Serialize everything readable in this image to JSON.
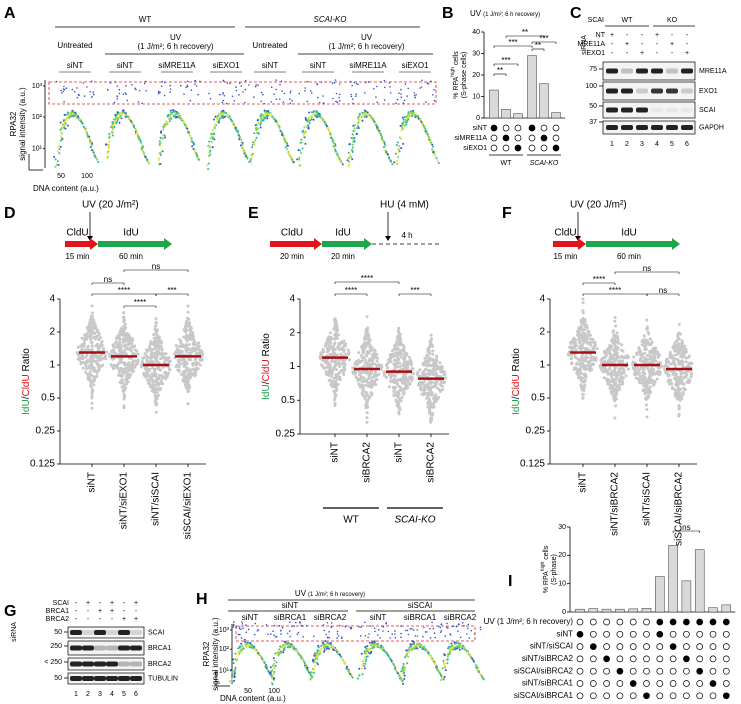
{
  "A": {
    "letter": "A",
    "groups": [
      "WT",
      "SCAI-KO"
    ],
    "untreated": "Untreated",
    "uv": "UV",
    "uv_detail": "(1 J/m²; 6 h recovery)",
    "lanes": [
      "siNT",
      "siNT",
      "siMRE11A",
      "siEXO1",
      "siNT",
      "siNT",
      "siMRE11A",
      "siEXO1"
    ],
    "ylabel": [
      "RPA32",
      "signal intensity (a.u.)"
    ],
    "xlabel": "DNA content (a.u.)",
    "yticks": [
      "10³",
      "10²",
      "10¹"
    ],
    "xticks": [
      "50",
      "100"
    ]
  },
  "B": {
    "letter": "B",
    "title": "UV",
    "title_detail": "(1 J/m²; 6 h recovery)",
    "ylabel_main": "% RPA",
    "ylabel_sup": "high",
    "ylabel_end": " cells",
    "ylabel_line2": "(S-phase cells)",
    "ylim": [
      0,
      40
    ],
    "yticks": [
      0,
      10,
      20,
      30,
      40
    ],
    "values": [
      13,
      4,
      2,
      29,
      16,
      2.5
    ],
    "color": "#d9d9d9",
    "sig": [
      "**",
      "***",
      "***",
      "**",
      "**",
      "***"
    ],
    "rows": [
      "siNT",
      "siMRE11A",
      "siEXO1"
    ],
    "matrix": [
      [
        1,
        0,
        0,
        1,
        0,
        0
      ],
      [
        0,
        1,
        0,
        0,
        1,
        0
      ],
      [
        0,
        0,
        1,
        0,
        0,
        1
      ]
    ],
    "groups": [
      "WT",
      "SCAI-KO"
    ]
  },
  "C": {
    "letter": "C",
    "siRNA": "siRNA",
    "header": "SCAI",
    "groups": [
      "WT",
      "KO"
    ],
    "rows": [
      "NT",
      "MRE11A",
      "EXO1"
    ],
    "signs": [
      [
        "+",
        "-",
        "-",
        "+",
        "-",
        "-"
      ],
      [
        "-",
        "+",
        "-",
        "-",
        "+",
        "-"
      ],
      [
        "-",
        "-",
        "+",
        "-",
        "-",
        "+"
      ]
    ],
    "mw": [
      "75",
      "100",
      "50",
      "37"
    ],
    "bands": [
      "MRE11A",
      "EXO1",
      "SCAI",
      "GAPDH"
    ],
    "lanes": [
      "1",
      "2",
      "3",
      "4",
      "5",
      "6"
    ]
  },
  "D": {
    "letter": "D",
    "treatment": "UV (20 J/m²)",
    "labels": [
      "CldU",
      "IdU"
    ],
    "label_colors": [
      "#e3141b",
      "#1fa64a"
    ],
    "times": [
      "15 min",
      "60 min"
    ],
    "ylabel": [
      "IdU",
      "/",
      "CldU",
      " Ratio"
    ],
    "ylabel_colors": [
      "#1fa64a",
      "#000000",
      "#e3141b",
      "#000000"
    ],
    "log": true,
    "ylim": [
      0.125,
      4
    ],
    "yticks": [
      0.125,
      0.25,
      0.5,
      1,
      2,
      4
    ],
    "categories": [
      "siNT",
      "siNT/siEXO1",
      "siNT/siSCAI",
      "siSCAI/siEXO1"
    ],
    "medians": [
      1.3,
      1.2,
      1.0,
      1.2
    ],
    "median_color": "#a50f15",
    "sig": [
      "ns",
      "ns",
      "****",
      "***",
      "****"
    ]
  },
  "E": {
    "letter": "E",
    "treatment": "HU (4 mM)",
    "labels": [
      "CldU",
      "IdU"
    ],
    "label_colors": [
      "#e3141b",
      "#1fa64a"
    ],
    "times": [
      "20 min",
      "20 min",
      "4 h"
    ],
    "ylabel": [
      "IdU",
      "/",
      "CldU",
      " Ratio"
    ],
    "ylabel_colors": [
      "#1fa64a",
      "#000000",
      "#e3141b",
      "#000000"
    ],
    "log": true,
    "ylim": [
      0.25,
      4
    ],
    "yticks": [
      0.25,
      0.5,
      1,
      2,
      4
    ],
    "categories": [
      "siNT",
      "siBRCA2",
      "siNT",
      "siBRCA2"
    ],
    "groups": [
      "WT",
      "SCAI-KO"
    ],
    "medians": [
      1.2,
      0.95,
      0.9,
      0.78
    ],
    "median_color": "#a50f15",
    "sig": [
      "****",
      "****",
      "***"
    ]
  },
  "F": {
    "letter": "F",
    "treatment": "UV (20 J/m²)",
    "labels": [
      "CldU",
      "IdU"
    ],
    "label_colors": [
      "#e3141b",
      "#1fa64a"
    ],
    "times": [
      "15 min",
      "60 min"
    ],
    "ylabel": [
      "IdU",
      "/",
      "CldU",
      " Ratio"
    ],
    "ylabel_colors": [
      "#1fa64a",
      "#000000",
      "#e3141b",
      "#000000"
    ],
    "log": true,
    "ylim": [
      0.125,
      4
    ],
    "yticks": [
      0.125,
      0.25,
      0.5,
      1,
      2,
      4
    ],
    "categories": [
      "siNT",
      "siNT/siBRCA2",
      "siNT/siSCAI",
      "siSCAI/siBRCA2"
    ],
    "medians": [
      1.3,
      1.0,
      1.0,
      0.92
    ],
    "median_color": "#a50f15",
    "sig": [
      "****",
      "****",
      "ns",
      "ns"
    ]
  },
  "G": {
    "letter": "G",
    "siRNA": "siRNA",
    "rows": [
      "SCAI",
      "BRCA1",
      "BRCA2"
    ],
    "signs": [
      [
        "-",
        "+",
        "-",
        "+",
        "-",
        "+"
      ],
      [
        "-",
        "-",
        "+",
        "+",
        "-",
        "-"
      ],
      [
        "-",
        "-",
        "-",
        "-",
        "+",
        "+"
      ]
    ],
    "mw": [
      "50",
      "250",
      "< 250",
      "50"
    ],
    "bands": [
      "SCAI",
      "BRCA1",
      "BRCA2",
      "TUBULIN"
    ],
    "lanes": [
      "1",
      "2",
      "3",
      "4",
      "5",
      "6"
    ]
  },
  "H": {
    "letter": "H",
    "title": "UV",
    "title_detail": "(1 J/m²; 6 h recovery)",
    "groups": [
      "siNT",
      "siSCAI"
    ],
    "lanes": [
      "siNT",
      "siBRCA1",
      "siBRCA2",
      "siNT",
      "siBRCA1",
      "siBRCA2"
    ],
    "ylabel": [
      "RPA32",
      "signal intensity (a.u.)"
    ],
    "xlabel": "DNA content (a.u.)",
    "yticks": [
      "10³",
      "10²",
      "10¹"
    ],
    "xticks": [
      "50",
      "100"
    ]
  },
  "I": {
    "letter": "I",
    "ylabel_main": "% RPA",
    "ylabel_sup": "high",
    "ylabel_end": " cells",
    "ylabel_line2": "(S-phase)",
    "ylim": [
      0,
      30
    ],
    "yticks": [
      0,
      10,
      20,
      30
    ],
    "values": [
      1,
      1.2,
      1,
      1,
      1.1,
      1.3,
      12.5,
      23.5,
      11,
      22,
      1.5,
      2.5
    ],
    "color": "#d9d9d9",
    "sig": [
      "ns"
    ],
    "rows": [
      "UV (1 J/m²; 6 h recovery)",
      "siNT",
      "siNT/siSCAI",
      "siNT/siBRCA2",
      "siSCAI/siBRCA2",
      "siNT/siBRCA1",
      "siSCAI/siBRCA1"
    ],
    "matrix": [
      [
        0,
        0,
        0,
        0,
        0,
        0,
        1,
        1,
        1,
        1,
        1,
        1
      ],
      [
        1,
        0,
        0,
        0,
        0,
        0,
        1,
        0,
        0,
        0,
        0,
        0
      ],
      [
        0,
        1,
        0,
        0,
        0,
        0,
        0,
        1,
        0,
        0,
        0,
        0
      ],
      [
        0,
        0,
        1,
        0,
        0,
        0,
        0,
        0,
        1,
        0,
        0,
        0
      ],
      [
        0,
        0,
        0,
        1,
        0,
        0,
        0,
        0,
        0,
        1,
        0,
        0
      ],
      [
        0,
        0,
        0,
        0,
        1,
        0,
        0,
        0,
        0,
        0,
        1,
        0
      ],
      [
        0,
        0,
        0,
        0,
        0,
        1,
        0,
        0,
        0,
        0,
        0,
        1
      ]
    ]
  }
}
